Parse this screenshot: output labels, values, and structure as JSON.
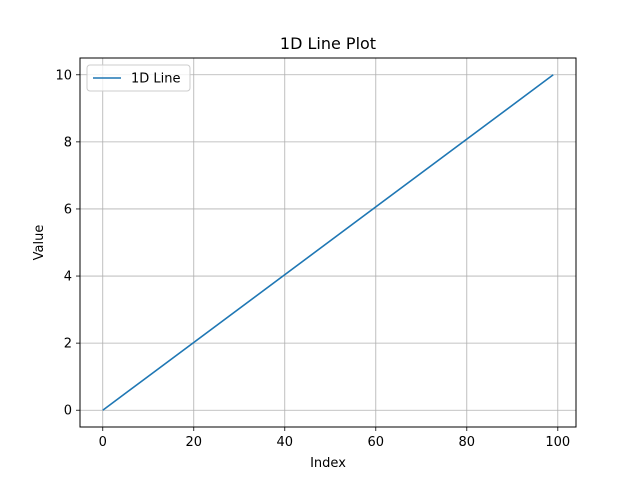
{
  "chart_data": {
    "type": "line",
    "title": "1D Line Plot",
    "xlabel": "Index",
    "ylabel": "Value",
    "xlim": [
      -5,
      104
    ],
    "ylim": [
      -0.5,
      10.5
    ],
    "xticks": [
      0,
      20,
      40,
      60,
      80,
      100
    ],
    "yticks": [
      0,
      2,
      4,
      6,
      8,
      10
    ],
    "grid": true,
    "legend_position": "top-left",
    "series": [
      {
        "name": "1D Line",
        "color": "#1f77b4",
        "x": [
          0,
          99
        ],
        "y": [
          0,
          10
        ]
      }
    ]
  }
}
